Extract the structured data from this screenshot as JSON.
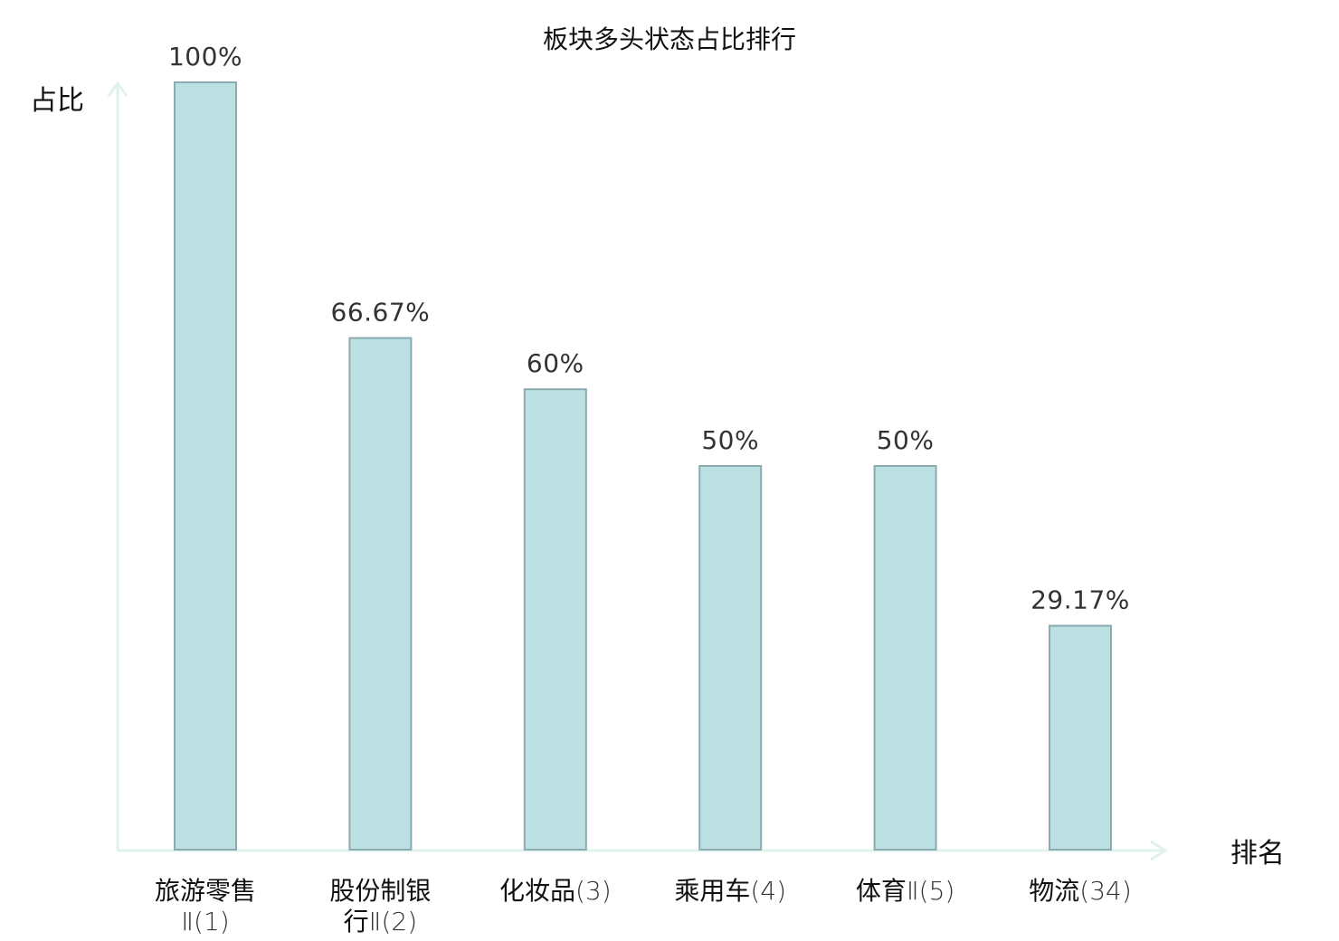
{
  "chart_data": {
    "type": "bar",
    "title": "板块多头状态占比排行",
    "xlabel": "排名",
    "ylabel": "占比",
    "categories": [
      {
        "lines": [
          {
            "name": "旅游零售",
            "rank": ""
          },
          {
            "name": "",
            "rank": "Ⅱ(1)"
          }
        ],
        "highlight": false
      },
      {
        "lines": [
          {
            "name": "股份制银",
            "rank": ""
          },
          {
            "name": "行",
            "rank": "Ⅱ(2)"
          }
        ],
        "highlight": false
      },
      {
        "lines": [
          {
            "name": "化妆品",
            "rank": "(3)"
          }
        ],
        "highlight": false
      },
      {
        "lines": [
          {
            "name": "乘用车",
            "rank": "(4)"
          }
        ],
        "highlight": false
      },
      {
        "lines": [
          {
            "name": "体育",
            "rank": "Ⅱ(5)"
          }
        ],
        "highlight": false
      },
      {
        "lines": [
          {
            "name": "物流",
            "rank": "(34)"
          }
        ],
        "highlight": true
      }
    ],
    "values": [
      100,
      66.67,
      60,
      50,
      50,
      29.17
    ],
    "value_labels": [
      "100%",
      "66.67%",
      "60%",
      "50%",
      "50%",
      "29.17%"
    ],
    "ylim": [
      0,
      100
    ],
    "grid": false,
    "colors": {
      "bar_fill": "#bde0e3",
      "bar_stroke": "#8aabaf",
      "axis": "#dff2ef",
      "highlight_text": "#e0141e",
      "text": "#111111",
      "value_text": "#333333"
    }
  }
}
